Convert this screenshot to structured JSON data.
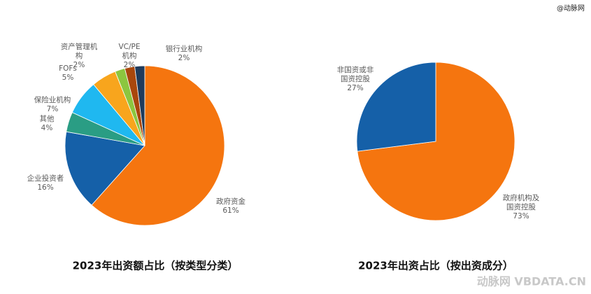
{
  "watermark": "@动脉网",
  "footer_watermark": "动脉网 VBDATA.CN",
  "chart_data": [
    {
      "type": "pie",
      "title": "2023年出资额占比（按类型分类）",
      "categories": [
        "政府资金",
        "企业投资者",
        "其他",
        "保险业机构",
        "FOFs",
        "资产管理机构",
        "VC/PE机构",
        "银行业机构"
      ],
      "values": [
        61,
        16,
        4,
        7,
        5,
        2,
        2,
        2
      ],
      "value_labels": [
        "61%",
        "16%",
        "4%",
        "7%",
        "5%",
        "2%",
        "2%",
        "2%"
      ],
      "colors": [
        "#f5750f",
        "#1560a8",
        "#2a9d84",
        "#1fb8f0",
        "#f8a51d",
        "#8cc63f",
        "#a9470c",
        "#1f3b5c"
      ]
    },
    {
      "type": "pie",
      "title": "2023年出资占比（按出资成分）",
      "categories": [
        "政府机构及国资控股",
        "非国资或非国资控股"
      ],
      "values": [
        73,
        27
      ],
      "value_labels": [
        "73%",
        "27%"
      ],
      "colors": [
        "#f5750f",
        "#1560a8"
      ]
    }
  ]
}
